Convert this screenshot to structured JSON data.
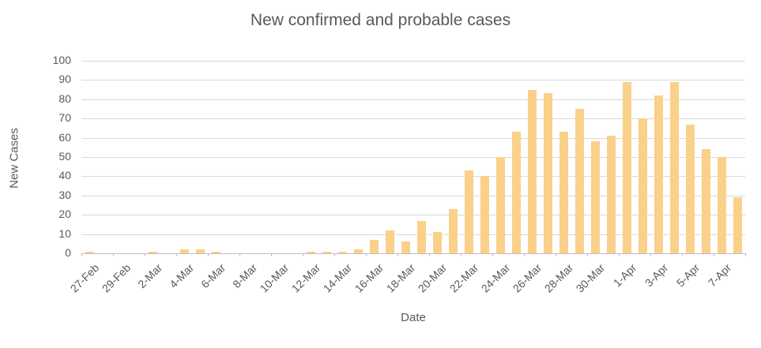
{
  "chart_data": {
    "type": "bar",
    "title": "New confirmed and probable cases",
    "xlabel": "Date",
    "ylabel": "New Cases",
    "ylim": [
      0,
      100
    ],
    "y_ticks": [
      0,
      10,
      20,
      30,
      40,
      50,
      60,
      70,
      80,
      90,
      100
    ],
    "grid": "horizontal",
    "legend": "none",
    "bar_color": "#fad189",
    "text_color": "#595959",
    "gridline_color": "#d9d9d9",
    "categories": [
      "27-Feb",
      "28-Feb",
      "29-Feb",
      "1-Mar",
      "2-Mar",
      "3-Mar",
      "4-Mar",
      "5-Mar",
      "6-Mar",
      "7-Mar",
      "8-Mar",
      "9-Mar",
      "10-Mar",
      "11-Mar",
      "12-Mar",
      "13-Mar",
      "14-Mar",
      "15-Mar",
      "16-Mar",
      "17-Mar",
      "18-Mar",
      "19-Mar",
      "20-Mar",
      "21-Mar",
      "22-Mar",
      "23-Mar",
      "24-Mar",
      "25-Mar",
      "26-Mar",
      "27-Mar",
      "28-Mar",
      "29-Mar",
      "30-Mar",
      "31-Mar",
      "1-Apr",
      "2-Apr",
      "3-Apr",
      "4-Apr",
      "5-Apr",
      "6-Apr",
      "7-Apr",
      "8-Apr"
    ],
    "values": [
      1,
      0,
      0,
      0,
      1,
      0,
      2,
      2,
      1,
      0,
      0,
      0,
      0,
      0,
      1,
      1,
      1,
      2,
      7,
      12,
      6,
      17,
      11,
      23,
      43,
      40,
      50,
      63,
      85,
      83,
      63,
      75,
      58,
      61,
      89,
      70,
      82,
      89,
      67,
      54,
      50,
      29
    ],
    "x_tick_labels": [
      "27-Feb",
      "29-Feb",
      "2-Mar",
      "4-Mar",
      "6-Mar",
      "8-Mar",
      "10-Mar",
      "12-Mar",
      "14-Mar",
      "16-Mar",
      "18-Mar",
      "20-Mar",
      "22-Mar",
      "24-Mar",
      "26-Mar",
      "28-Mar",
      "30-Mar",
      "1-Apr",
      "3-Apr",
      "5-Apr",
      "7-Apr"
    ],
    "x_label_every": 2
  }
}
